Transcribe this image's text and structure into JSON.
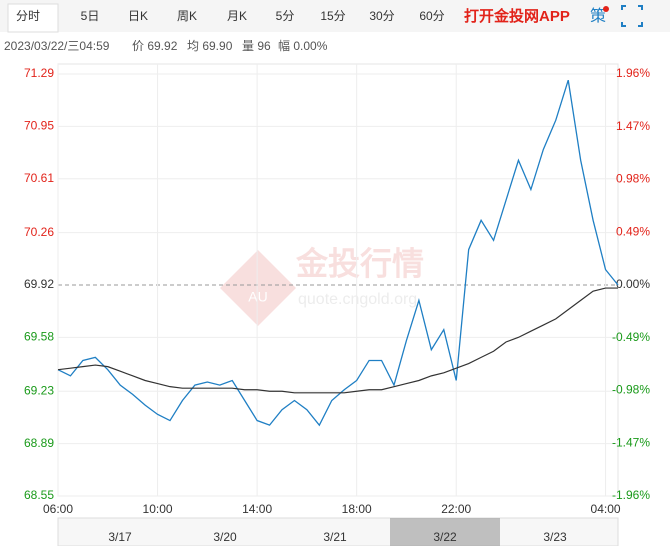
{
  "tabs": [
    "分时",
    "5日",
    "日K",
    "周K",
    "月K",
    "5分",
    "15分",
    "30分",
    "60分"
  ],
  "app_link": "打开金投网APP",
  "strategy": "策",
  "info": [
    "2023/03/22/三04:59",
    "价 69.92",
    "均 69.90",
    "量 96",
    "幅 0.00%"
  ],
  "watermark": {
    "logo": "AU",
    "title": "金投行情",
    "url": "quote.cngold.org"
  },
  "navigator": {
    "dates": [
      "3/17",
      "3/20",
      "3/21",
      "3/22",
      "3/23"
    ]
  },
  "chart_data": {
    "type": "line",
    "categories": [
      "06:00",
      null,
      null,
      null,
      null,
      null,
      null,
      null,
      "10:00",
      null,
      null,
      null,
      null,
      null,
      null,
      null,
      "14:00",
      null,
      null,
      null,
      null,
      null,
      null,
      null,
      "18:00",
      null,
      null,
      null,
      null,
      null,
      null,
      null,
      "22:00",
      null,
      null,
      null,
      null,
      null,
      null,
      null,
      null,
      null,
      null,
      null,
      "04:00",
      null
    ],
    "series": [
      {
        "color": "#1f7fc4",
        "values": [
          69.37,
          69.33,
          69.43,
          69.45,
          69.37,
          69.27,
          69.21,
          69.14,
          69.08,
          69.04,
          69.17,
          69.27,
          69.29,
          69.27,
          69.3,
          69.17,
          69.04,
          69.01,
          69.11,
          69.17,
          69.11,
          69.01,
          69.17,
          69.24,
          69.3,
          69.43,
          69.43,
          69.27,
          69.56,
          69.82,
          69.5,
          69.63,
          69.3,
          70.15,
          70.34,
          70.21,
          70.47,
          70.73,
          70.54,
          70.8,
          70.99,
          71.25,
          70.73,
          70.34,
          70.02,
          69.92
        ]
      },
      {
        "color": "#333333",
        "values": [
          69.37,
          69.38,
          69.39,
          69.4,
          69.39,
          69.36,
          69.33,
          69.3,
          69.28,
          69.26,
          69.25,
          69.25,
          69.25,
          69.25,
          69.25,
          69.24,
          69.24,
          69.23,
          69.23,
          69.22,
          69.22,
          69.22,
          69.22,
          69.22,
          69.23,
          69.24,
          69.24,
          69.26,
          69.28,
          69.3,
          69.33,
          69.35,
          69.38,
          69.41,
          69.45,
          69.49,
          69.55,
          69.58,
          69.62,
          69.66,
          69.7,
          69.76,
          69.82,
          69.88,
          69.9,
          69.9
        ]
      }
    ],
    "ylim": [
      68.55,
      71.29
    ],
    "yticks": [
      68.55,
      68.89,
      69.23,
      69.58,
      69.92,
      70.26,
      70.61,
      70.95,
      71.29
    ],
    "y2lim": [
      -1.96,
      1.96
    ],
    "y2ticks": [
      {
        "value": -1.96,
        "label": "-1.96%"
      },
      {
        "value": -1.47,
        "label": "-1.47%"
      },
      {
        "value": -0.98,
        "label": "-0.98%"
      },
      {
        "value": -0.49,
        "label": "-0.49%"
      },
      {
        "value": 0,
        "label": "0.00%"
      },
      {
        "value": 0.49,
        "label": "0.49%"
      },
      {
        "value": 0.98,
        "label": "0.98%"
      },
      {
        "value": 1.47,
        "label": "1.47%"
      },
      {
        "value": 1.96,
        "label": "1.96%"
      }
    ],
    "grid": true
  }
}
